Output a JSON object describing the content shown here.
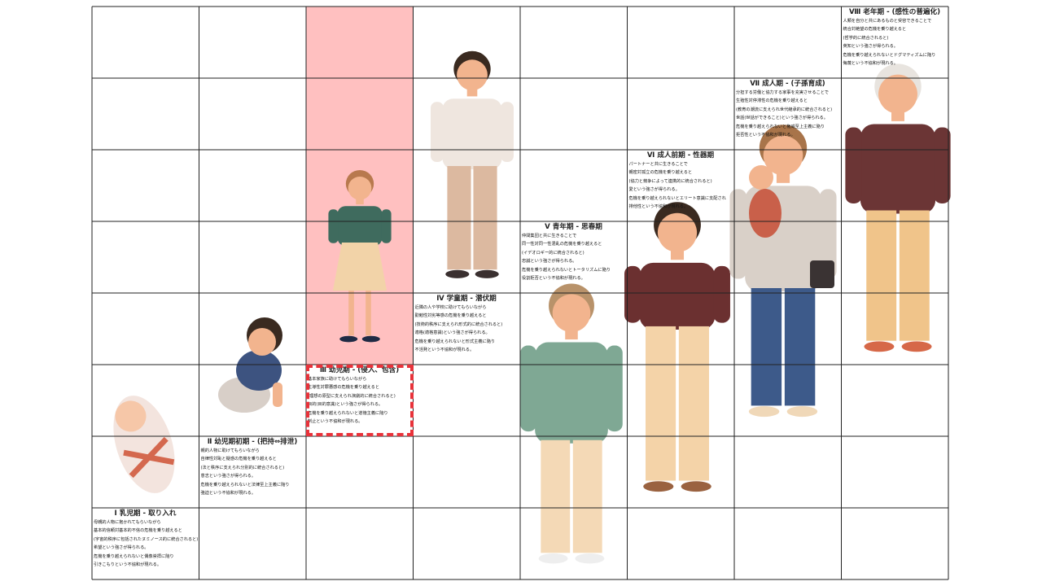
{
  "grid": {
    "columns": 8,
    "rows": 8
  },
  "colors": {
    "highlight": "#ffc0c0",
    "dashed_border": "#e8323a",
    "grid_line": "#222222"
  },
  "highlighted_stage": 3,
  "stages": [
    {
      "title": "Ⅰ 乳児期 - 取り入れ",
      "lines": [
        "母親的人物に抱かれてもらいながら",
        "基本的信頼対基本的不信の危機を乗り越えると",
        "(宇宙的秩序に包括されたヌミノース的に統合されると)",
        "希望という強さが得られる。",
        "危機を乗り越えられないと偶像崇拝に陥り",
        "引きこもりという不協和が現れる。"
      ]
    },
    {
      "title": "Ⅱ 幼児期初期 - (把持⇔排泄)",
      "lines": [
        "親的人物に助けてもらいながら",
        "自律性対恥と疑惑の危機を乗り越えると",
        "(法と秩序に支えられ分別的に統合されると)",
        "意志という強さが得られる。",
        "危機を乗り越えられないと法律至上主義に陥り",
        "強迫という不協和が現れる。"
      ]
    },
    {
      "title": "Ⅲ 幼児期 - (侵入、包含)",
      "lines": [
        "基本家族に助けてもらいながら",
        "主導性対罪悪感の危機を乗り越えると",
        "(理想の原型に支えられ演劇的に統合されると)",
        "目的(目的意識)という強さが得られる。",
        "危機を乗り越えられないと道徳主義に陥り",
        "制止という不協和が現れる。"
      ]
    },
    {
      "title": "Ⅳ 学童期 - 潜伏期",
      "lines": [
        "近隣の人や学校に助けてもらいながら",
        "勤勉性対劣等感の危機を乗り越えると",
        "(技術的秩序に支えられ形式的に統合されると)",
        "適格(適格意識)という強さが得られる。",
        "危機を乗り越えられないと形式主義に陥り",
        "不活発という不協和が現れる。"
      ]
    },
    {
      "title": "Ⅴ 青年期 - 思春期",
      "lines": [
        "仲間集団と共に生きることで",
        "同一性対同一性混乱の危機を乗り越えると",
        "(イデオロギー的に統合されると)",
        "忠誠という強さが得られる。",
        "危機を乗り越えられないとトータリズムに陥り",
        "役割拒否という不協和が現れる。"
      ]
    },
    {
      "title": "Ⅵ 成人前期 - 性器期",
      "lines": [
        "パートナーと共に生きることで",
        "親密対孤立の危機を乗り越えると",
        "(協力と競争によって連携的に統合されると)",
        "愛という強さが得られる。",
        "危機を乗り越えられないとエリート意識に支配され",
        "排他性という不協和が現れる。"
      ]
    },
    {
      "title": "Ⅶ 成人期 - (子孫育成)",
      "lines": [
        "分担する労働と協力する家事を充実させることで",
        "生殖性対停滞性の危機を乗り越えると",
        "(教育の潮流に支えられ世代継承的に統合されると)",
        "世話(世話ができること)という強さが得られる。",
        "危機を乗り越えられないと権威至上主義に陥り",
        "拒否性という不協和が現れる。"
      ]
    },
    {
      "title": "Ⅷ 老年期 - (感性の普遍化)",
      "lines": [
        "人類を自分と共にあるものと受容できることで",
        "統合対絶望の危機を乗り越えると",
        "(哲学的に統合されると)",
        "英知という強さが得られる。",
        "危機を乗り越えられないとドグマティズムに陥り",
        "侮蔑という不協和が現れる。"
      ]
    }
  ]
}
